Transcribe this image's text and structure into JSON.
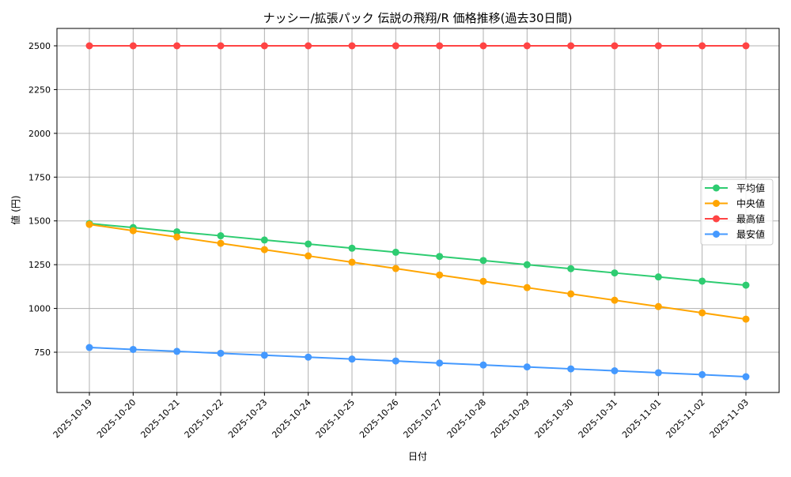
{
  "chart_data": {
    "type": "line",
    "title": "ナッシー/拡張パック 伝説の飛翔/R 価格推移(過去30日間)",
    "xlabel": "日付",
    "ylabel": "値 (円)",
    "ylim": [
      590,
      2600
    ],
    "yticks": [
      750,
      1000,
      1250,
      1500,
      1750,
      2000,
      2250,
      2500
    ],
    "grid": true,
    "legend_position": "center-right",
    "x": [
      "2025-10-19",
      "2025-10-20",
      "2025-10-21",
      "2025-10-22",
      "2025-10-23",
      "2025-10-24",
      "2025-10-25",
      "2025-10-26",
      "2025-10-27",
      "2025-10-28",
      "2025-10-29",
      "2025-10-30",
      "2025-10-31",
      "2025-11-01",
      "2025-11-02",
      "2025-11-03"
    ],
    "series": [
      {
        "name": "平均値",
        "color": "#2ecc71",
        "values": [
          1485,
          1462,
          1438,
          1415,
          1391,
          1368,
          1344,
          1321,
          1297,
          1274,
          1250,
          1227,
          1203,
          1180,
          1156,
          1133
        ]
      },
      {
        "name": "中央値",
        "color": "#ffa500",
        "values": [
          1480,
          1444,
          1408,
          1372,
          1336,
          1300,
          1264,
          1228,
          1191,
          1155,
          1119,
          1083,
          1047,
          1011,
          975,
          939
        ]
      },
      {
        "name": "最高値",
        "color": "#ff4444",
        "values": [
          2500,
          2500,
          2500,
          2500,
          2500,
          2500,
          2500,
          2500,
          2500,
          2500,
          2500,
          2500,
          2500,
          2500,
          2500,
          2500
        ]
      },
      {
        "name": "最安値",
        "color": "#4499ff",
        "values": [
          777,
          766,
          755,
          744,
          733,
          722,
          711,
          700,
          688,
          677,
          666,
          655,
          644,
          633,
          622,
          610
        ]
      }
    ]
  }
}
